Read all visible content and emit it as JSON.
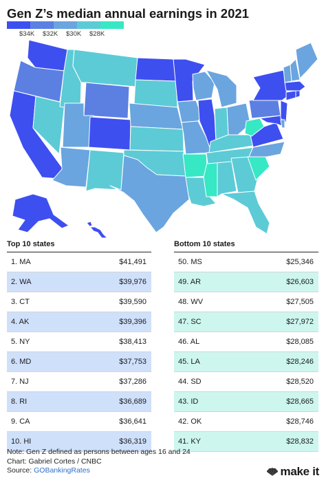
{
  "title": "Gen Z’s median annual earnings in 2021",
  "colors": {
    "tier1": "#3e4ff0",
    "tier2": "#5b80e2",
    "tier3": "#6aa5df",
    "tier4": "#5ccbd6",
    "tier5": "#37e8c5",
    "top_row_shade": "#cfe0fb",
    "bottom_row_shade": "#cdf6ef",
    "source_link": "#2e6ec6"
  },
  "legend": {
    "labels": [
      "$34K",
      "$32K",
      "$30K",
      "$28K"
    ]
  },
  "chart_data": {
    "type": "table",
    "title": "Gen Z’s median annual earnings in 2021",
    "map_type": "choropleth of U.S. states",
    "legend_thresholds": [
      "$34K",
      "$32K",
      "$30K",
      "$28K"
    ],
    "top": {
      "heading": "Top 10 states",
      "rows": [
        {
          "rank": "1. MA",
          "value": "$41,491"
        },
        {
          "rank": "2. WA",
          "value": "$39,976"
        },
        {
          "rank": "3. CT",
          "value": "$39,590"
        },
        {
          "rank": "4. AK",
          "value": "$39,396"
        },
        {
          "rank": "5. NY",
          "value": "$38,413"
        },
        {
          "rank": "6. MD",
          "value": "$37,753"
        },
        {
          "rank": "7. NJ",
          "value": "$37,286"
        },
        {
          "rank": "8. RI",
          "value": "$36,689"
        },
        {
          "rank": "9. CA",
          "value": "$36,641"
        },
        {
          "rank": "10. HI",
          "value": "$36,319"
        }
      ]
    },
    "bottom": {
      "heading": "Bottom 10 states",
      "rows": [
        {
          "rank": "50. MS",
          "value": "$25,346"
        },
        {
          "rank": "49. AR",
          "value": "$26,603"
        },
        {
          "rank": "48. WV",
          "value": "$27,505"
        },
        {
          "rank": "47. SC",
          "value": "$27,972"
        },
        {
          "rank": "46. AL",
          "value": "$28,085"
        },
        {
          "rank": "45. LA",
          "value": "$28,246"
        },
        {
          "rank": "44. SD",
          "value": "$28,520"
        },
        {
          "rank": "43. ID",
          "value": "$28,665"
        },
        {
          "rank": "42. OK",
          "value": "$28,746"
        },
        {
          "rank": "41. KY",
          "value": "$28,832"
        }
      ]
    }
  },
  "footer": {
    "note": "Note: Gen Z defined as persons between ages 16 and 24",
    "chart_credit": "Chart: Gabriel Cortes / CNBC",
    "source_prefix": "Source: ",
    "source_name": "GOBankingRates"
  },
  "logo": {
    "text": "make it",
    "icon": "peacock-icon"
  }
}
